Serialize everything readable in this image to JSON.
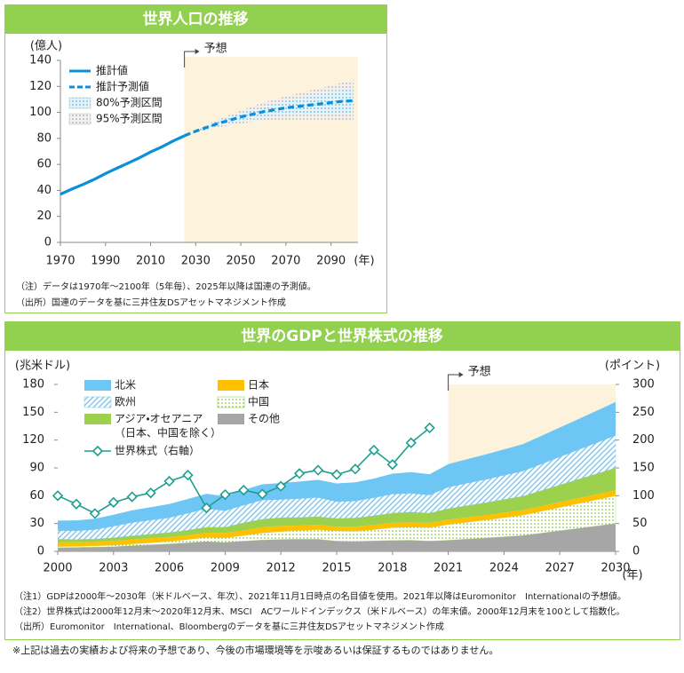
{
  "chart_data": [
    {
      "type": "line",
      "title": "世界人口の推移",
      "y_unit": "(億人)",
      "x_unit": "(年)",
      "annotation": "予想",
      "x": [
        1970,
        1975,
        1980,
        1985,
        1990,
        1995,
        2000,
        2005,
        2010,
        2015,
        2020,
        2025,
        2030,
        2035,
        2040,
        2045,
        2050,
        2055,
        2060,
        2065,
        2070,
        2075,
        2080,
        2085,
        2090,
        2095,
        2100
      ],
      "xlim": [
        1970,
        2100
      ],
      "xticks": [
        1970,
        1990,
        2010,
        2030,
        2050,
        2070,
        2090
      ],
      "ylim": [
        0,
        140
      ],
      "yticks": [
        0,
        20,
        40,
        60,
        80,
        100,
        120,
        140
      ],
      "forecast_region": [
        2025,
        2100
      ],
      "series": [
        {
          "name": "推計値",
          "color": "#0a8fd8",
          "values": [
            37,
            41,
            44.5,
            48.5,
            53,
            57,
            61,
            65,
            69.5,
            73.5,
            78,
            82,
            null,
            null,
            null,
            null,
            null,
            null,
            null,
            null,
            null,
            null,
            null,
            null,
            null,
            null,
            null
          ]
        },
        {
          "name": "推計予測値",
          "color": "#0a8fd8",
          "dashed": true,
          "values": [
            null,
            null,
            null,
            null,
            null,
            null,
            null,
            null,
            null,
            null,
            null,
            82,
            85.5,
            88.5,
            91.5,
            94,
            96.5,
            98.5,
            100.5,
            102,
            103.5,
            104.5,
            105.5,
            106.5,
            107.5,
            108.5,
            109
          ]
        },
        {
          "name": "80%予測区間",
          "color": "#5bb8e8",
          "fill": "dots",
          "lower": [
            null,
            null,
            null,
            null,
            null,
            null,
            null,
            null,
            null,
            null,
            null,
            82,
            85,
            87.5,
            90,
            92,
            94,
            95.5,
            97,
            98,
            98.5,
            99,
            99.5,
            99.5,
            100,
            100,
            100
          ],
          "upper": [
            null,
            null,
            null,
            null,
            null,
            null,
            null,
            null,
            null,
            null,
            null,
            82,
            86,
            89.5,
            93,
            96,
            99,
            101.5,
            104,
            106,
            108.5,
            110,
            111.5,
            113.5,
            115,
            117,
            118
          ]
        },
        {
          "name": "95%予測区間",
          "color": "#a8a8a8",
          "fill": "dots",
          "lower": [
            null,
            null,
            null,
            null,
            null,
            null,
            null,
            null,
            null,
            null,
            null,
            82,
            84.5,
            86.5,
            88.5,
            90,
            91.5,
            92.5,
            93.5,
            94,
            94.5,
            94.5,
            94.5,
            94.5,
            94.5,
            94,
            93
          ],
          "upper": [
            null,
            null,
            null,
            null,
            null,
            null,
            null,
            null,
            null,
            null,
            null,
            82,
            86.5,
            90.5,
            94.5,
            98,
            101.5,
            104.5,
            107.5,
            110,
            112.5,
            114.5,
            116.5,
            118.5,
            120.5,
            123,
            125
          ]
        }
      ],
      "notes": [
        "（注）データは1970年～2100年（5年毎）、2025年以降は国連の予測値。",
        "（出所）国連のデータを基に三井住友DSアセットマネジメント作成"
      ]
    },
    {
      "type": "area",
      "stacked": true,
      "title": "世界のGDPと世界株式の推移",
      "y_unit": "(兆米ドル)",
      "y2_unit": "(ポイント)",
      "x_unit": "(年)",
      "annotation": "予想",
      "x": [
        2000,
        2001,
        2002,
        2003,
        2004,
        2005,
        2006,
        2007,
        2008,
        2009,
        2010,
        2011,
        2012,
        2013,
        2014,
        2015,
        2016,
        2017,
        2018,
        2019,
        2020,
        2021,
        2022,
        2023,
        2024,
        2025,
        2026,
        2027,
        2028,
        2029,
        2030
      ],
      "xlim": [
        2000,
        2030
      ],
      "xticks": [
        2000,
        2003,
        2006,
        2009,
        2012,
        2015,
        2018,
        2021,
        2024,
        2027,
        2030
      ],
      "ylim": [
        0,
        180
      ],
      "yticks": [
        0,
        30,
        60,
        90,
        120,
        150,
        180
      ],
      "y2lim": [
        0,
        300
      ],
      "y2ticks": [
        0,
        50,
        100,
        150,
        200,
        250,
        300
      ],
      "forecast_region": [
        2021,
        2030
      ],
      "series": [
        {
          "name": "その他",
          "color": "#a6a6a6",
          "values": [
            4,
            4.2,
            4.5,
            5,
            6,
            7,
            8,
            9.2,
            10.5,
            9.5,
            11,
            12.3,
            12.8,
            13,
            13,
            11,
            10.5,
            11.2,
            11.8,
            12,
            11,
            12,
            13.2,
            14.4,
            15.7,
            17,
            19.6,
            22.2,
            24.8,
            27.4,
            30
          ]
        },
        {
          "name": "中国",
          "color": "#8cc63f",
          "fill": "dots",
          "values": [
            1.2,
            1.3,
            1.5,
            1.7,
            2,
            2.3,
            2.8,
            3.6,
            4.6,
            5.1,
            6.1,
            7.6,
            8.5,
            9.6,
            10.5,
            11.1,
            11.2,
            12.3,
            13.9,
            14.3,
            14.7,
            17,
            18.2,
            19.4,
            20.7,
            22,
            23.6,
            25.2,
            26.8,
            28.4,
            30
          ]
        },
        {
          "name": "日本",
          "color": "#ffc000",
          "values": [
            4.9,
            4.3,
            4.1,
            4.5,
            4.8,
            4.8,
            4.5,
            4.5,
            5,
            5.2,
            5.7,
            6.2,
            6.3,
            5.2,
            4.9,
            4.4,
            5,
            4.9,
            5,
            5.1,
            5,
            5.1,
            5.2,
            5.3,
            5.4,
            5.5,
            5.6,
            5.7,
            5.8,
            5.9,
            6
          ]
        },
        {
          "name": "アジア・オセアニア",
          "name_note": "（日本、中国を除く）",
          "color": "#9bd14c",
          "values": [
            3,
            3,
            3.2,
            3.5,
            4,
            4.5,
            5,
            5.6,
            6,
            6.2,
            8,
            8.6,
            8.8,
            8.9,
            9,
            9,
            9.4,
            10,
            10.6,
            11,
            10.5,
            12,
            12.7,
            13.4,
            14.2,
            15,
            16.7,
            18.5,
            20.3,
            22.1,
            24
          ]
        },
        {
          "name": "欧州",
          "color": "#7fc4ea",
          "fill": "hatch",
          "values": [
            9,
            9.3,
            10.2,
            12.4,
            14.2,
            15,
            16,
            18.2,
            20,
            17.8,
            19,
            20.5,
            19.5,
            20.2,
            20.6,
            18,
            18.2,
            19.2,
            20.5,
            20,
            19.5,
            23,
            24,
            25,
            26,
            27,
            28.6,
            30.2,
            31.8,
            33.4,
            35
          ]
        },
        {
          "name": "北米",
          "color": "#6ec6f5",
          "values": [
            11,
            11.3,
            11.7,
            12.3,
            13.2,
            14,
            14.8,
            15.4,
            16,
            15.6,
            16.5,
            17.1,
            17.8,
            18.4,
            19.2,
            19.7,
            20.1,
            20.9,
            22,
            23,
            22.5,
            25,
            26,
            27,
            28,
            29,
            30.4,
            31.8,
            33.2,
            34.6,
            36
          ]
        },
        {
          "name": "世界株式（右軸）",
          "color": "#1f9e8f",
          "axis": "y2",
          "type": "line",
          "values": [
            100,
            85,
            68,
            88,
            98,
            105,
            126,
            137,
            78,
            102,
            110,
            103,
            117,
            140,
            146,
            138,
            148,
            182,
            156,
            195,
            222,
            null,
            null,
            null,
            null,
            null,
            null,
            null,
            null,
            null,
            null
          ]
        }
      ],
      "notes": [
        "（注1）GDPは2000年～2030年（米ドルベース、年次）、2021年11月1日時点の名目値を使用。2021年以降はEuromonitor　Internationalの予想値。",
        "（注2）世界株式は2000年12月末～2020年12月末、MSCI　ACワールドインデックス（米ドルベース）の年末値。2000年12月末を100として指数化。",
        "（出所）Euromonitor　International、Bloombergのデータを基に三井住友DSアセットマネジメント作成"
      ]
    }
  ],
  "footnote": "※上記は過去の実績および将来の予想であり、今後の市場環境等を示唆あるいは保証するものではありません。"
}
